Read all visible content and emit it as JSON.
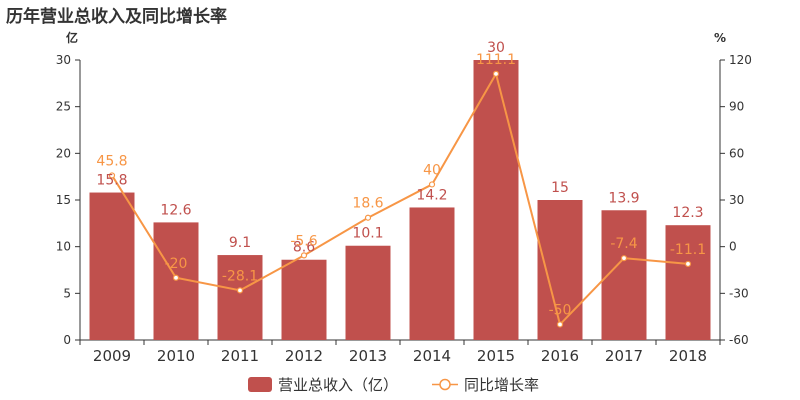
{
  "title": "历年营业总收入及同比增长率",
  "chart_data": {
    "type": "bar",
    "title": "历年营业总收入及同比增长率",
    "categories": [
      "2009",
      "2010",
      "2011",
      "2012",
      "2013",
      "2014",
      "2015",
      "2016",
      "2017",
      "2018"
    ],
    "series": [
      {
        "name": "营业总收入（亿）",
        "type": "bar",
        "axis": "left",
        "values": [
          15.8,
          12.6,
          9.1,
          8.6,
          10.1,
          14.2,
          30,
          15,
          13.9,
          12.3
        ]
      },
      {
        "name": "同比增长率",
        "type": "line",
        "axis": "right",
        "values": [
          45.8,
          -20,
          -28.1,
          -5.6,
          18.6,
          40,
          111.1,
          -50,
          -7.4,
          -11.1
        ]
      }
    ],
    "y_left": {
      "unit": "亿",
      "min": 0,
      "max": 30,
      "ticks": [
        0,
        5,
        10,
        15,
        20,
        25,
        30
      ]
    },
    "y_right": {
      "unit": "%",
      "min": -60,
      "max": 120,
      "ticks": [
        -60,
        -30,
        0,
        30,
        60,
        90,
        120
      ]
    },
    "grid": false,
    "legend": "bottom-center",
    "colors": {
      "bar": "#c0504d",
      "line": "#f79646",
      "bar_label": "#c0504d",
      "line_label": "#f79646"
    }
  }
}
